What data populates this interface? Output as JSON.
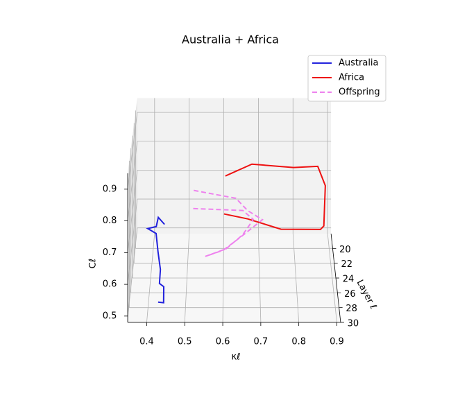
{
  "chart_data": {
    "type": "line3d",
    "title": "Australia + Africa",
    "xlabel": "κℓ",
    "ylabel": "Layer ℓ",
    "zlabel": "Cℓ",
    "xlim": [
      0.35,
      0.91
    ],
    "ylim": [
      18,
      30
    ],
    "zlim": [
      0.48,
      0.95
    ],
    "xticks": [
      0.4,
      0.5,
      0.6,
      0.7,
      0.8,
      0.9
    ],
    "yticks": [
      20,
      22,
      24,
      26,
      28,
      30
    ],
    "zticks": [
      0.5,
      0.6,
      0.7,
      0.8,
      0.9
    ],
    "grid": true,
    "legend": "upper right",
    "series": [
      {
        "name": "Australia",
        "color": "#2222dd",
        "linestyle": "solid",
        "x": [
          0.432,
          0.416,
          0.412,
          0.39,
          0.415,
          0.422,
          0.43,
          0.429,
          0.442,
          0.443,
          0.43
        ],
        "y": [
          20,
          21,
          22,
          23,
          24,
          25,
          26,
          27,
          28,
          29,
          30
        ],
        "z": [
          0.562,
          0.61,
          0.603,
          0.62,
          0.627,
          0.589,
          0.556,
          0.534,
          0.547,
          0.519,
          0.544
        ]
      },
      {
        "name": "Africa",
        "color": "#ee1111",
        "linestyle": "solid",
        "x": [
          0.605,
          0.68,
          0.796,
          0.862,
          0.881,
          0.875,
          0.864,
          0.756,
          0.666,
          0.603
        ],
        "y": [
          20,
          21,
          22,
          23,
          24,
          25,
          26,
          27,
          28,
          29
        ],
        "z": [
          0.727,
          0.79,
          0.801,
          0.827,
          0.785,
          0.675,
          0.686,
          0.709,
          0.764,
          0.801
        ]
      },
      {
        "name": "Offspring",
        "color": "#ee82ee",
        "linestyle": "dashed",
        "x": [
          0.514,
          0.635,
          0.668,
          0.709,
          0.644,
          0.6,
          0.551,
          0.608,
          0.653,
          0.681,
          0.653,
          0.52
        ],
        "y": [
          19,
          20,
          21,
          22,
          23,
          24,
          25,
          26,
          27,
          28,
          29,
          30
        ],
        "z": [
          0.654,
          0.651,
          0.633,
          0.626,
          0.588,
          0.572,
          0.575,
          0.623,
          0.691,
          0.762,
          0.812,
          0.839
        ]
      }
    ]
  }
}
